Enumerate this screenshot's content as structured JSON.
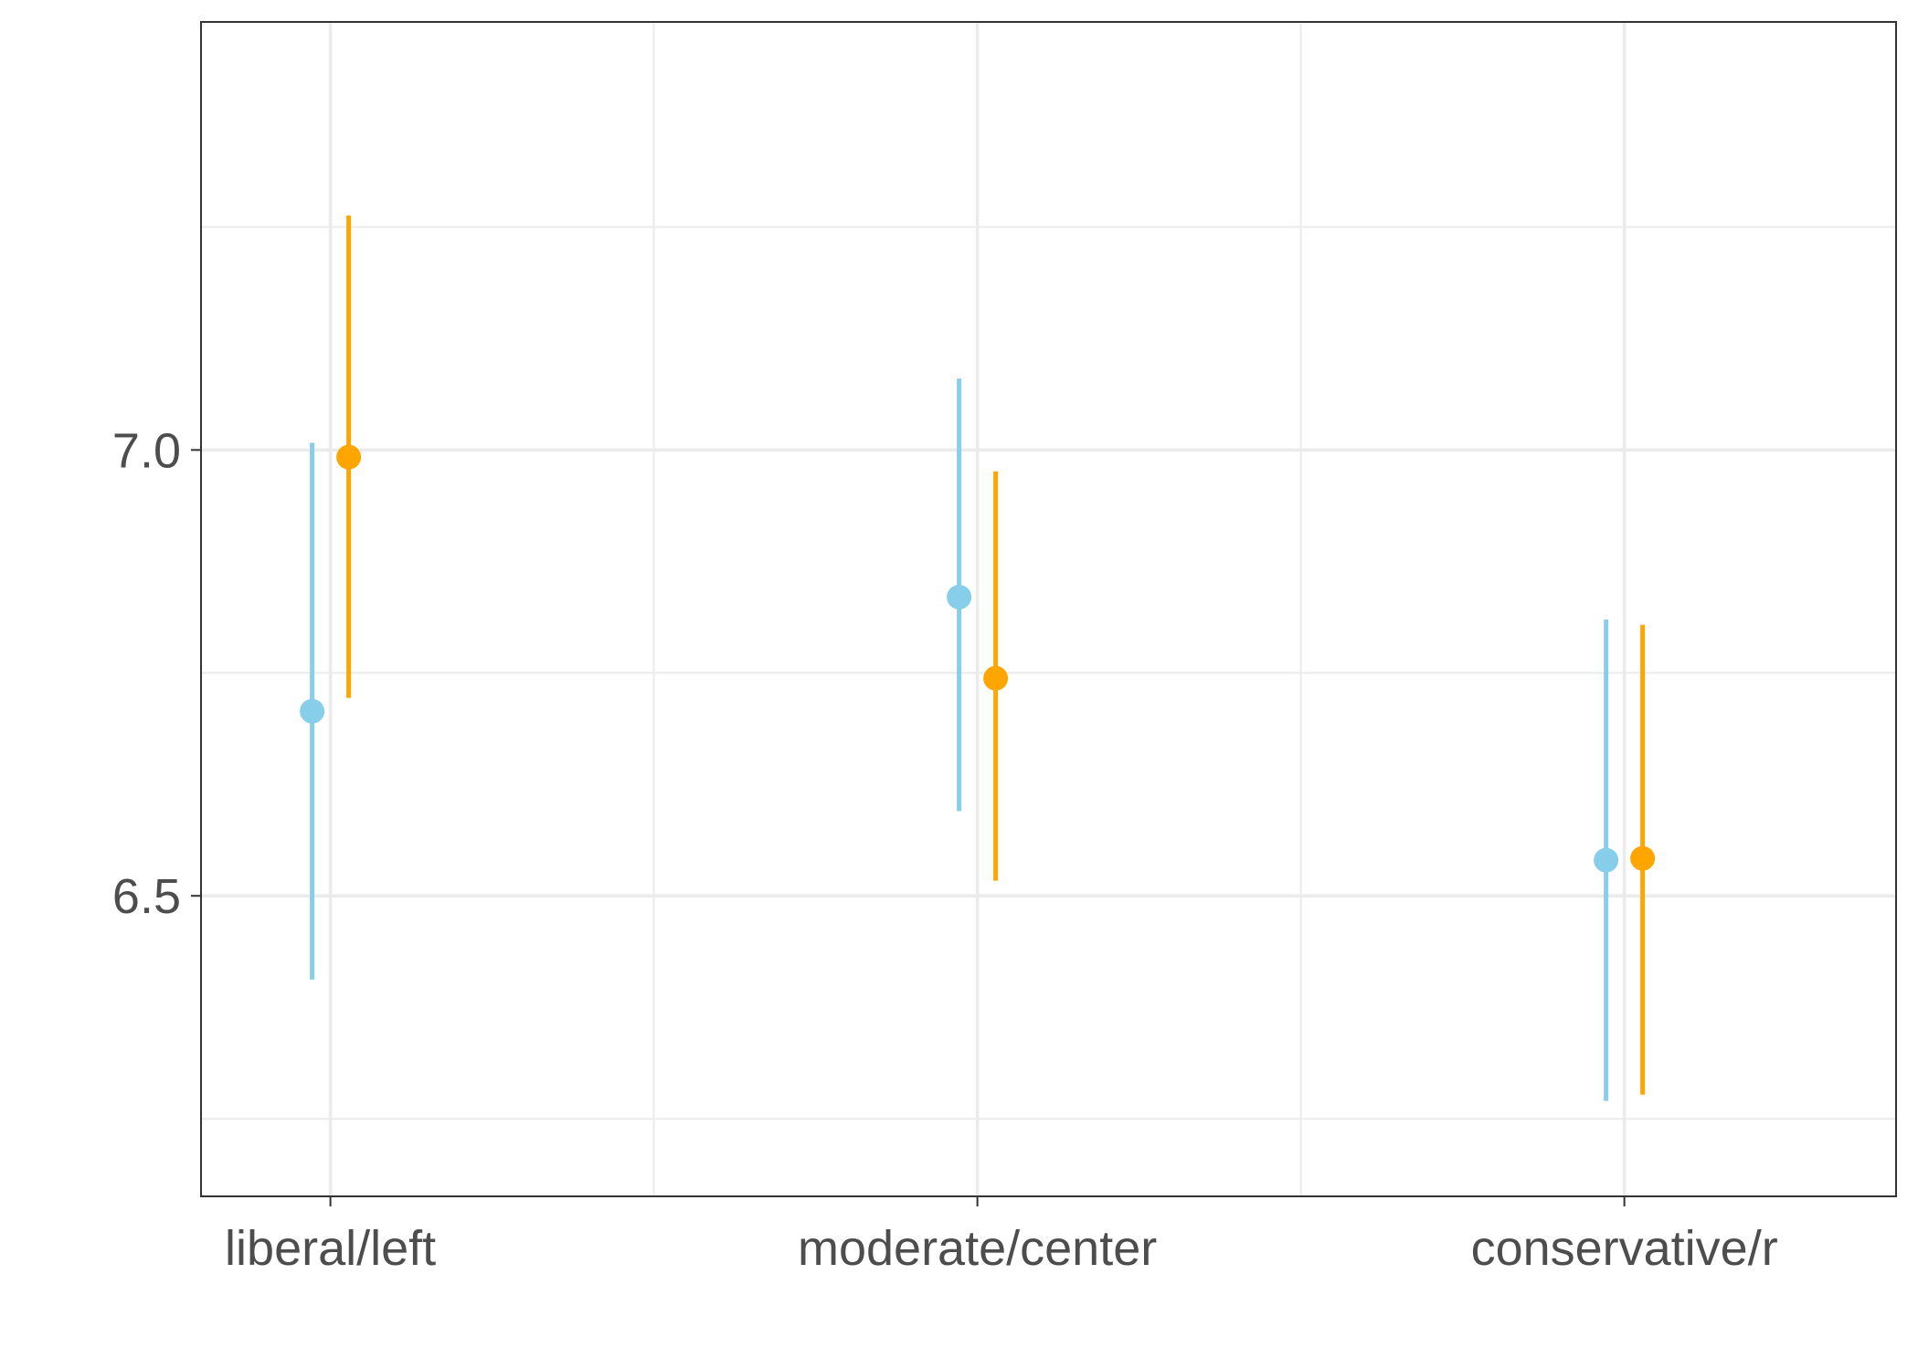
{
  "chart_data": {
    "type": "scatter",
    "title": "",
    "xlabel": "",
    "ylabel": "",
    "categories": [
      "liberal/left",
      "moderate/center",
      "conservative/r"
    ],
    "yticks": [
      "6.5",
      "7.0"
    ],
    "ylim": [
      6.163,
      7.48
    ],
    "grid": true,
    "legend": "none",
    "series": [
      {
        "color": "#87CEEB",
        "points": [
          {
            "y": 6.707,
            "low": 6.406,
            "high": 7.008
          },
          {
            "y": 6.835,
            "low": 6.595,
            "high": 7.08
          },
          {
            "y": 6.54,
            "low": 6.27,
            "high": 6.81
          }
        ]
      },
      {
        "color": "#FFA500",
        "points": [
          {
            "y": 6.992,
            "low": 6.722,
            "high": 7.263
          },
          {
            "y": 6.744,
            "low": 6.517,
            "high": 6.976
          },
          {
            "y": 6.542,
            "low": 6.277,
            "high": 6.804
          }
        ]
      }
    ]
  }
}
